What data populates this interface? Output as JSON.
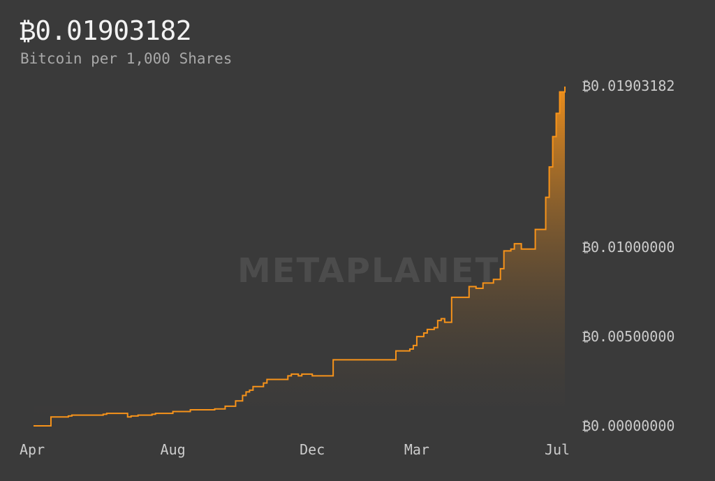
{
  "header": {
    "headline": "₿0.01903182",
    "subtitle": "Bitcoin per 1,000 Shares"
  },
  "watermark": {
    "text": "METAPLANET"
  },
  "colors": {
    "background": "#3a3a3a",
    "line": "#f7931a",
    "fill_top": "#f7931a",
    "fill_bottom": "#3a3a3a"
  },
  "chart_data": {
    "type": "area",
    "title": "₿0.01903182",
    "subtitle": "Bitcoin per 1,000 Shares",
    "x_tick_labels": [
      "Apr",
      "Aug",
      "Dec",
      "Mar",
      "Jul"
    ],
    "x_tick_positions": [
      0,
      4,
      8,
      11,
      15
    ],
    "y_tick_labels": [
      "₿0.01903182",
      "₿0.01000000",
      "₿0.00500000",
      "₿0.00000000"
    ],
    "y_tick_values": [
      0.01903182,
      0.01,
      0.005,
      0.0
    ],
    "xlim": [
      0,
      15.25
    ],
    "ylim": [
      0,
      0.019
    ],
    "grid": false,
    "x": [
      0,
      0.5,
      1.0,
      1.1,
      2.0,
      2.1,
      2.7,
      2.8,
      3.0,
      3.4,
      3.5,
      4.0,
      4.5,
      5.2,
      5.5,
      5.8,
      6.0,
      6.1,
      6.2,
      6.3,
      6.6,
      6.7,
      7.3,
      7.4,
      7.6,
      7.7,
      8.0,
      8.5,
      8.6,
      9.0,
      9.5,
      10.3,
      10.4,
      10.6,
      10.8,
      10.9,
      11.0,
      11.2,
      11.3,
      11.5,
      11.6,
      11.7,
      11.8,
      12.0,
      12.4,
      12.5,
      12.7,
      12.8,
      12.9,
      13.0,
      13.2,
      13.4,
      13.5,
      13.7,
      13.8,
      14.0,
      14.4,
      14.7,
      14.8,
      14.9,
      15.0,
      15.1,
      15.25
    ],
    "y": [
      0.0,
      0.0005,
      0.00055,
      0.0006,
      0.00065,
      0.0007,
      0.0005,
      0.00055,
      0.0006,
      0.00065,
      0.0007,
      0.0008,
      0.0009,
      0.00095,
      0.0011,
      0.0014,
      0.0017,
      0.0019,
      0.002,
      0.0022,
      0.0024,
      0.0026,
      0.0028,
      0.0029,
      0.0028,
      0.0029,
      0.0028,
      0.0028,
      0.0037,
      0.0037,
      0.0037,
      0.0037,
      0.0042,
      0.0042,
      0.0043,
      0.0045,
      0.005,
      0.0052,
      0.0054,
      0.0055,
      0.0059,
      0.006,
      0.0058,
      0.0072,
      0.0072,
      0.0078,
      0.0077,
      0.0077,
      0.008,
      0.008,
      0.0082,
      0.0088,
      0.0098,
      0.0099,
      0.0102,
      0.0099,
      0.011,
      0.0128,
      0.0145,
      0.0162,
      0.0175,
      0.0187,
      0.019
    ]
  }
}
